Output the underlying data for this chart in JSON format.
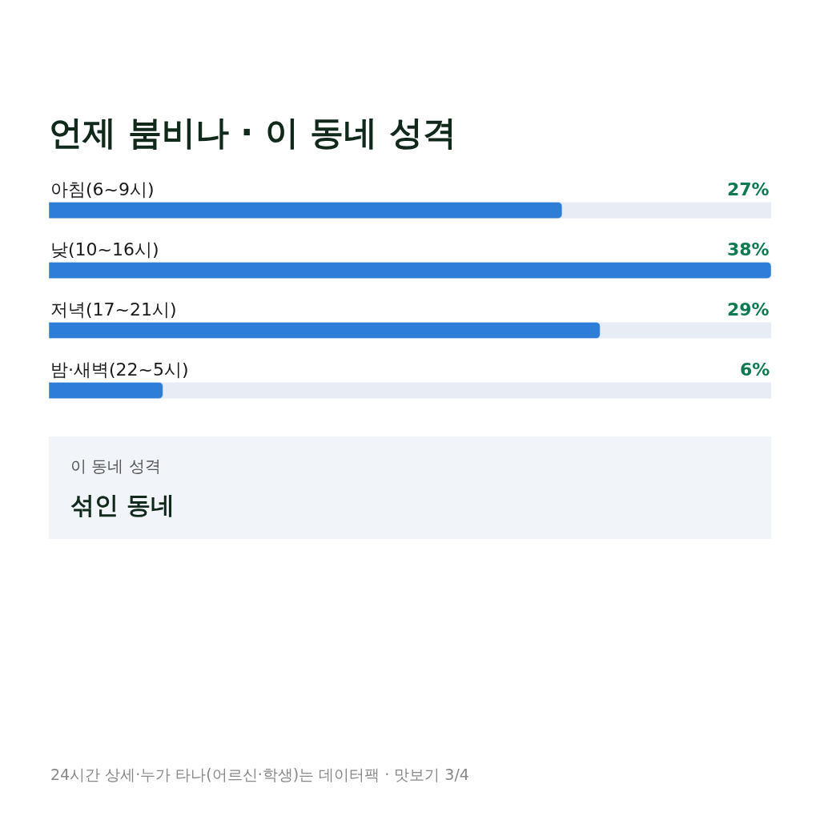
{
  "chart_data": {
    "type": "bar",
    "orientation": "horizontal",
    "title": "언제 붐비나 · 이 동네 성격",
    "categories": [
      "아침(6~9시)",
      "낮(10~16시)",
      "저녁(17~21시)",
      "밤·새벽(22~5시)"
    ],
    "values": [
      27,
      38,
      29,
      6
    ],
    "value_labels": [
      "27%",
      "38%",
      "29%",
      "6%"
    ],
    "color": "#2e7dd6",
    "xlim": [
      0,
      38
    ],
    "tick_labels": false,
    "grid": false,
    "legend": false,
    "annotations": [
      "이 동네 성격",
      "섞인 동네",
      "24시간 상세·누가 타나(어르신·학생)는 데이터팩 · 맛보기 3/4"
    ]
  }
}
